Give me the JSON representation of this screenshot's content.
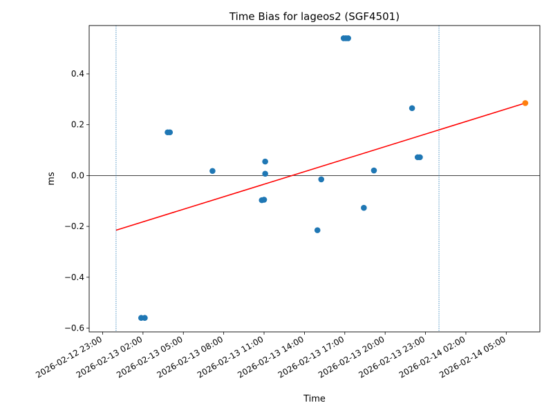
{
  "chart_data": {
    "type": "scatter",
    "title": "Time Bias for lageos2 (SGF4501)",
    "xlabel": "Time",
    "ylabel": "ms",
    "xlim": [
      "2026-02-12 22:00",
      "2026-02-14 07:30"
    ],
    "ylim": [
      -0.615,
      0.59
    ],
    "x_ticks": [
      "2026-02-12 23:00",
      "2026-02-13 02:00",
      "2026-02-13 05:00",
      "2026-02-13 08:00",
      "2026-02-13 11:00",
      "2026-02-13 14:00",
      "2026-02-13 17:00",
      "2026-02-13 20:00",
      "2026-02-13 23:00",
      "2026-02-14 02:00",
      "2026-02-14 05:00"
    ],
    "y_ticks": [
      -0.6,
      -0.4,
      -0.2,
      0.0,
      0.2,
      0.4
    ],
    "y_tick_labels": [
      "−0.6",
      "−0.4",
      "−0.2",
      "0.0",
      "0.2",
      "0.4"
    ],
    "vertical_lines": [
      "2026-02-13 00:00",
      "2026-02-14 00:00"
    ],
    "zero_line": 0,
    "series": [
      {
        "color": "#1f77b4",
        "points": [
          {
            "x": "2026-02-13 01:52",
            "y": -0.56
          },
          {
            "x": "2026-02-13 02:08",
            "y": -0.56
          },
          {
            "x": "2026-02-13 03:50",
            "y": 0.17
          },
          {
            "x": "2026-02-13 04:00",
            "y": 0.17
          },
          {
            "x": "2026-02-13 07:10",
            "y": 0.018
          },
          {
            "x": "2026-02-13 10:50",
            "y": -0.097
          },
          {
            "x": "2026-02-13 11:00",
            "y": -0.095
          },
          {
            "x": "2026-02-13 11:05",
            "y": 0.055
          },
          {
            "x": "2026-02-13 11:05",
            "y": 0.007
          },
          {
            "x": "2026-02-13 14:58",
            "y": -0.215
          },
          {
            "x": "2026-02-13 15:15",
            "y": -0.015
          },
          {
            "x": "2026-02-13 16:55",
            "y": 0.54
          },
          {
            "x": "2026-02-13 17:05",
            "y": 0.54
          },
          {
            "x": "2026-02-13 17:15",
            "y": 0.54
          },
          {
            "x": "2026-02-13 18:25",
            "y": -0.127
          },
          {
            "x": "2026-02-13 19:10",
            "y": 0.02
          },
          {
            "x": "2026-02-13 22:00",
            "y": 0.265
          },
          {
            "x": "2026-02-13 22:25",
            "y": 0.072
          },
          {
            "x": "2026-02-13 22:35",
            "y": 0.072
          }
        ]
      },
      {
        "color": "#ff7f0e",
        "points": [
          {
            "x": "2026-02-14 06:25",
            "y": 0.285
          }
        ]
      }
    ],
    "trend_line": {
      "color": "#ff0000",
      "start": {
        "x": "2026-02-13 00:00",
        "y": -0.215
      },
      "end": {
        "x": "2026-02-14 06:25",
        "y": 0.285
      }
    }
  }
}
